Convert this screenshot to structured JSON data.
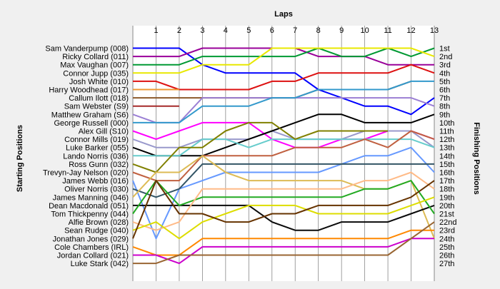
{
  "chart_data": {
    "type": "line",
    "title": "Laps",
    "ylabel_left": "Starting Positions",
    "ylabel_right": "Finishing Positions",
    "x": [
      0,
      1,
      2,
      3,
      4,
      5,
      6,
      7,
      8,
      9,
      10,
      11,
      12,
      13
    ],
    "x_tick_labels": [
      "1",
      "2",
      "3",
      "4",
      "5",
      "6",
      "7",
      "8",
      "9",
      "10",
      "11",
      "12",
      "13"
    ],
    "finishing_labels": [
      "1st",
      "2nd",
      "3rd",
      "4th",
      "5th",
      "6th",
      "7th",
      "8th",
      "9th",
      "10th",
      "11th",
      "12th",
      "13th",
      "14th",
      "15th",
      "16th",
      "17th",
      "18th",
      "19th",
      "20th",
      "21st",
      "22nd",
      "23rd",
      "24th",
      "25th",
      "26th",
      "27th"
    ],
    "y_inverted": true,
    "ylim": [
      1,
      28
    ],
    "grid": "vertical",
    "series": [
      {
        "name": "Sam Vanderpump (008)",
        "color": "#0000ff",
        "values": [
          1,
          1,
          1,
          3,
          4,
          4,
          4,
          4,
          6,
          7,
          8,
          8,
          9,
          7
        ]
      },
      {
        "name": "Ricky Collard (011)",
        "color": "#990099",
        "values": [
          2,
          2,
          2,
          1,
          1,
          1,
          1,
          1,
          2,
          2,
          2,
          3,
          3,
          3
        ]
      },
      {
        "name": "Max Vaughan (007)",
        "color": "#009933",
        "values": [
          3,
          3,
          3,
          2,
          2,
          2,
          2,
          2,
          1,
          2,
          2,
          1,
          2,
          1
        ]
      },
      {
        "name": "Connor Jupp (035)",
        "color": "#e8e800",
        "values": [
          4,
          4,
          4,
          3,
          3,
          3,
          1,
          1,
          1,
          1,
          1,
          1,
          1,
          2
        ]
      },
      {
        "name": "Josh White (010)",
        "color": "#dd1111",
        "values": [
          5,
          5,
          6,
          6,
          6,
          6,
          5,
          5,
          4,
          4,
          4,
          4,
          3,
          4
        ]
      },
      {
        "name": "Harry Woodhead (017)",
        "color": "#ee9933",
        "values": [
          6,
          6,
          6,
          null,
          null,
          null,
          null,
          null,
          null,
          null,
          null,
          null,
          null,
          null
        ]
      },
      {
        "name": "Callum Ilott (018)",
        "color": "#8d5a2b",
        "values": [
          7,
          7,
          7,
          7,
          7,
          7,
          7,
          7,
          6,
          6,
          6,
          6,
          5,
          null
        ]
      },
      {
        "name": "Sam Webster (S9)",
        "color": "#a52a2a",
        "values": [
          8,
          8,
          8,
          null,
          null,
          null,
          null,
          null,
          null,
          null,
          null,
          null,
          null,
          null
        ]
      },
      {
        "name": "Matthew Graham (S6)",
        "color": "#9b7fd4",
        "values": [
          9,
          10,
          10,
          7,
          7,
          7,
          7,
          7,
          7,
          7,
          7,
          7,
          7,
          8
        ]
      },
      {
        "name": "George Russell (000)",
        "color": "#3399cc",
        "values": [
          10,
          10,
          10,
          8,
          8,
          8,
          7,
          7,
          6,
          6,
          6,
          6,
          5,
          5
        ]
      },
      {
        "name": "Alex Gill (S10)",
        "color": "#ff00ff",
        "values": [
          11,
          12,
          11,
          10,
          10,
          10,
          12,
          13,
          13,
          12,
          12,
          11,
          11,
          12
        ]
      },
      {
        "name": "Connor Mills (019)",
        "color": "#9999cc",
        "values": [
          12,
          13,
          13,
          12,
          12,
          12,
          11,
          12,
          12,
          12,
          11,
          11,
          11,
          13
        ]
      },
      {
        "name": "Luke Barker (055)",
        "color": "#000000",
        "values": [
          13,
          14,
          14,
          14,
          13,
          12,
          11,
          10,
          9,
          9,
          10,
          10,
          10,
          9
        ]
      },
      {
        "name": "Lando Norris (036)",
        "color": "#66cccc",
        "values": [
          14,
          14,
          14,
          12,
          12,
          13,
          12,
          12,
          12,
          12,
          12,
          12,
          12,
          13
        ]
      },
      {
        "name": "Ross Gunn (032)",
        "color": "#808000",
        "values": [
          15,
          16,
          13,
          13,
          11,
          10,
          10,
          12,
          11,
          11,
          11,
          11,
          null,
          null
        ]
      },
      {
        "name": "Trevyn-Jay Nelson (020)",
        "color": "#c06040",
        "values": [
          16,
          17,
          17,
          14,
          14,
          14,
          14,
          13,
          13,
          13,
          12,
          13,
          11,
          12
        ]
      },
      {
        "name": "James Webb (016)",
        "color": "#6699ff",
        "values": [
          17,
          24,
          18,
          17,
          16,
          16,
          16,
          16,
          16,
          15,
          14,
          14,
          13,
          16
        ]
      },
      {
        "name": "Oliver Norris (030)",
        "color": "#335566",
        "values": [
          18,
          19,
          18,
          15,
          15,
          15,
          15,
          15,
          15,
          15,
          15,
          15,
          15,
          15
        ]
      },
      {
        "name": "James Manning (046)",
        "color": "#ddbb55",
        "values": [
          19,
          16,
          16,
          14,
          16,
          17,
          17,
          17,
          17,
          17,
          18,
          18,
          17,
          24
        ]
      },
      {
        "name": "Dean Macdonald (051)",
        "color": "#0a0a0a",
        "values": [
          20,
          20,
          20,
          20,
          20,
          20,
          22,
          23,
          23,
          22,
          22,
          22,
          21,
          20
        ]
      },
      {
        "name": "Tom Thickpenny (044)",
        "color": "#22aa22",
        "values": [
          21,
          17,
          20,
          19,
          19,
          19,
          19,
          19,
          19,
          19,
          18,
          18,
          17,
          21
        ]
      },
      {
        "name": "Alfie Brown (028)",
        "color": "#ffbb88",
        "values": [
          22,
          23,
          22,
          18,
          18,
          18,
          18,
          18,
          18,
          18,
          17,
          17,
          16,
          18
        ]
      },
      {
        "name": "Sean Rudge (040)",
        "color": "#dddd00",
        "values": [
          23,
          22,
          24,
          22,
          21,
          20,
          20,
          20,
          21,
          21,
          21,
          21,
          20,
          19
        ]
      },
      {
        "name": "Jonathan Jones (029)",
        "color": "#663300",
        "values": [
          24,
          17,
          21,
          21,
          22,
          22,
          21,
          21,
          20,
          20,
          20,
          20,
          19,
          17
        ]
      },
      {
        "name": "Cole Chambers (IRL)",
        "color": "#ff8800",
        "values": [
          25,
          26,
          26,
          24,
          24,
          24,
          24,
          24,
          24,
          24,
          24,
          24,
          23,
          23
        ]
      },
      {
        "name": "Jordan Collard (021)",
        "color": "#cc00cc",
        "values": [
          26,
          26,
          27,
          25,
          25,
          25,
          25,
          25,
          25,
          25,
          25,
          25,
          24,
          24
        ]
      },
      {
        "name": "Luke Stark (042)",
        "color": "#996633",
        "values": [
          27,
          27,
          26,
          26,
          26,
          26,
          26,
          26,
          26,
          26,
          26,
          26,
          24,
          22
        ]
      }
    ]
  }
}
